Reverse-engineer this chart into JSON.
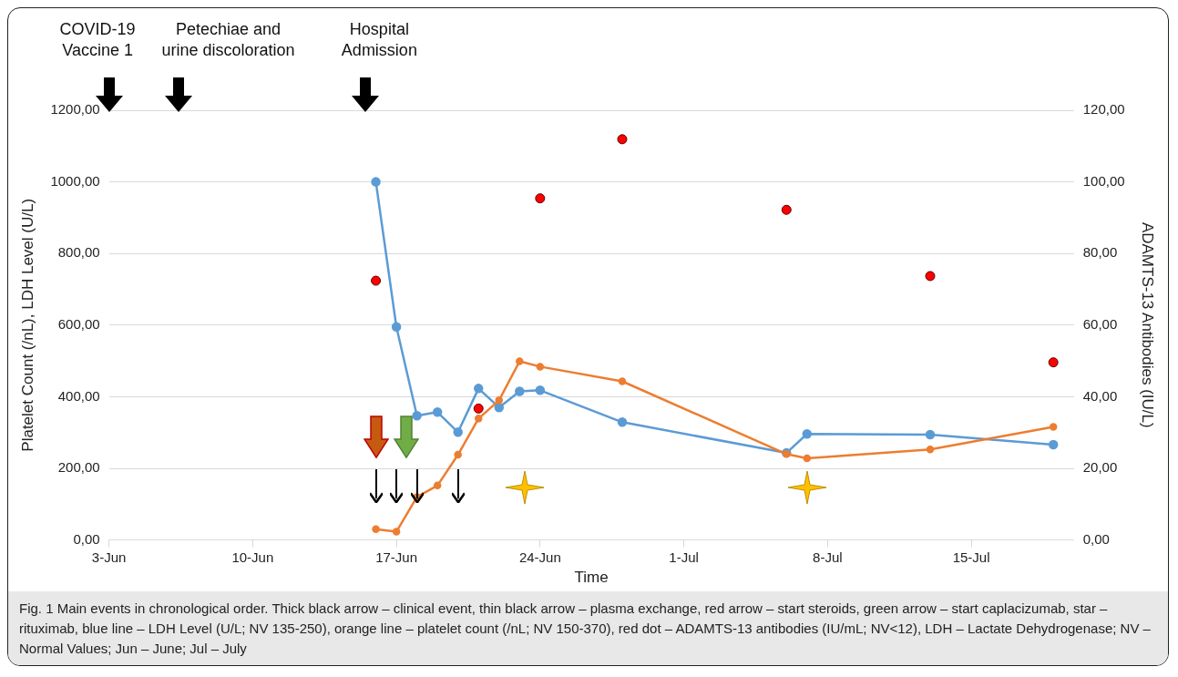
{
  "chart_data": {
    "type": "line",
    "xlabel": "Time",
    "ylabel": "Platelet Count (/nL), LDH Level (U/L)",
    "y2label": "ADAMTS-13 Antibodies (IU/L)",
    "xlim": [
      "--06-03",
      "--07-20"
    ],
    "xticks": [
      {
        "value": "--06-03",
        "label": "3-Jun"
      },
      {
        "value": "--06-10",
        "label": "10-Jun"
      },
      {
        "value": "--06-17",
        "label": "17-Jun"
      },
      {
        "value": "--06-24",
        "label": "24-Jun"
      },
      {
        "value": "--07-01",
        "label": "1-Jul"
      },
      {
        "value": "--07-08",
        "label": "8-Jul"
      },
      {
        "value": "--07-15",
        "label": "15-Jul"
      }
    ],
    "ylim": [
      0,
      1200
    ],
    "yticks": [
      {
        "value": 0,
        "label": "0,00"
      },
      {
        "value": 200,
        "label": "200,00"
      },
      {
        "value": 400,
        "label": "400,00"
      },
      {
        "value": 600,
        "label": "600,00"
      },
      {
        "value": 800,
        "label": "800,00"
      },
      {
        "value": 1000,
        "label": "1000,00"
      },
      {
        "value": 1200,
        "label": "1200,00"
      }
    ],
    "y2lim": [
      0,
      120
    ],
    "y2ticks": [
      {
        "value": 0,
        "label": "0,00"
      },
      {
        "value": 20,
        "label": "20,00"
      },
      {
        "value": 40,
        "label": "40,00"
      },
      {
        "value": 60,
        "label": "60,00"
      },
      {
        "value": 80,
        "label": "80,00"
      },
      {
        "value": 100,
        "label": "100,00"
      },
      {
        "value": 120,
        "label": "120,00"
      }
    ],
    "grid": "y",
    "marker": "circle",
    "line_style": "solid",
    "series": [
      {
        "color": "#5b9bd5",
        "x": [
          "--06-16",
          "--06-17",
          "--06-18",
          "--06-19",
          "--06-20",
          "--06-21",
          "--06-22",
          "--06-23",
          "--06-24",
          "--06-28",
          "--07-06",
          "--07-07",
          "--07-13",
          "--07-19"
        ],
        "values": [
          1000,
          595,
          347,
          357,
          301,
          423,
          370,
          415,
          418,
          329,
          243,
          296,
          294,
          266
        ]
      },
      {
        "color": "#ed7d31",
        "x": [
          "--06-16",
          "--06-17",
          "--06-18",
          "--06-19",
          "--06-20",
          "--06-21",
          "--06-22",
          "--06-23",
          "--06-24",
          "--06-28",
          "--07-06",
          "--07-07",
          "--07-13",
          "--07-19"
        ],
        "values": [
          30,
          23,
          120,
          152,
          238,
          339,
          390,
          499,
          484,
          443,
          240,
          228,
          253,
          316
        ]
      },
      {
        "type": "scatter",
        "axis": "y2",
        "color": "#ff0000",
        "x": [
          "--06-16",
          "--06-21",
          "--06-24",
          "--06-28",
          "--07-06",
          "--07-13",
          "--07-19"
        ],
        "values": [
          72.4,
          36.7,
          95.4,
          111.9,
          92.2,
          73.7,
          49.6
        ]
      }
    ],
    "annotations": [
      "COVID-19\nVaccine 1",
      "Petechiae and\nurine discoloration",
      "Hospital\nAdmission",
      "Fig. 1  Main events in chronological order. Thick black arrow – clinical event, thin black arrow – plasma exchange, red arrow – start steroids, green arrow – start caplacizumab, star – rituximab, blue line – LDH Level (U/L; NV 135-250), orange line – platelet count (/nL; NV 150-370), red dot – ADAMTS-13 antibodies (IU/mL; NV<12), LDH – Lactate Dehydrogenase; NV – Normal Values; Jun – June; Jul – July"
    ]
  }
}
